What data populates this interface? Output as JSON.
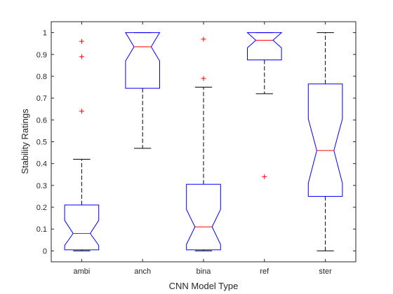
{
  "chart_data": {
    "type": "box",
    "notched": true,
    "xlabel": "CNN Model Type",
    "ylabel": "Stability Ratings",
    "ylim": [
      -0.05,
      1.05
    ],
    "yticks": [
      0,
      0.1,
      0.2,
      0.3,
      0.4,
      0.5,
      0.6,
      0.7,
      0.8,
      0.9,
      1
    ],
    "categories": [
      "ambi",
      "anch",
      "bina",
      "ref",
      "ster"
    ],
    "boxes": [
      {
        "category": "ambi",
        "whisker_low": 0,
        "q1": 0.005,
        "median": 0.08,
        "q3": 0.21,
        "whisker_high": 0.42,
        "notch_low": 0.025,
        "notch_high": 0.14,
        "outliers": [
          0.64,
          0.89,
          0.96
        ]
      },
      {
        "category": "anch",
        "whisker_low": 0.47,
        "q1": 0.745,
        "median": 0.935,
        "q3": 1.0,
        "whisker_high": 1.0,
        "notch_low": 0.87,
        "notch_high": 1.0,
        "outliers": []
      },
      {
        "category": "bina",
        "whisker_low": 0,
        "q1": 0.005,
        "median": 0.11,
        "q3": 0.305,
        "whisker_high": 0.75,
        "notch_low": 0.03,
        "notch_high": 0.19,
        "outliers": [
          0.79,
          0.97
        ]
      },
      {
        "category": "ref",
        "whisker_low": 0.72,
        "q1": 0.875,
        "median": 0.965,
        "q3": 1.0,
        "whisker_high": 1.0,
        "notch_low": 0.93,
        "notch_high": 1.0,
        "outliers": [
          0.34
        ]
      },
      {
        "category": "ster",
        "whisker_low": 0,
        "q1": 0.25,
        "median": 0.46,
        "q3": 0.765,
        "whisker_high": 1.0,
        "notch_low": 0.31,
        "notch_high": 0.605,
        "outliers": []
      }
    ],
    "colors": {
      "box": "#0000ff",
      "median": "#ff0000",
      "outlier": "#ff0000",
      "whisker": "#000000",
      "axis": "#262626"
    },
    "grid": false
  }
}
